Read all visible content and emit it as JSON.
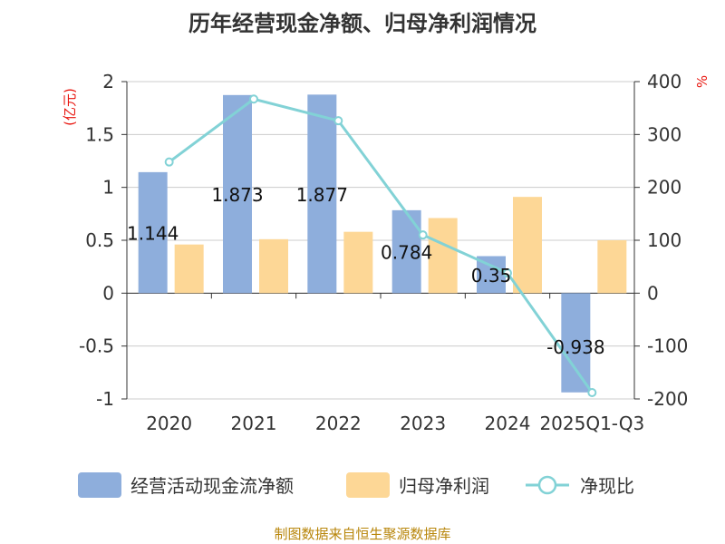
{
  "title": "历年经营现金净额、归母净利润情况",
  "source": "制图数据来自恒生聚源数据库",
  "chart_data": {
    "type": "bar+line",
    "categories": [
      "2020",
      "2021",
      "2022",
      "2023",
      "2024",
      "2025Q1-Q3"
    ],
    "series": [
      {
        "name": "经营活动现金流净额",
        "axis": "left",
        "type": "bar",
        "color": "#8eaedc",
        "values": [
          1.144,
          1.873,
          1.877,
          0.784,
          0.35,
          -0.938
        ],
        "labels": [
          "1.144",
          "1.873",
          "1.877",
          "0.784",
          "0.35",
          "-0.938"
        ]
      },
      {
        "name": "归母净利润",
        "axis": "left",
        "type": "bar",
        "color": "#fdd796",
        "values": [
          0.46,
          0.51,
          0.58,
          0.71,
          0.91,
          0.5
        ]
      },
      {
        "name": "净现比",
        "axis": "right",
        "type": "line",
        "color": "#82d2d6",
        "values": [
          248,
          367,
          326,
          110,
          38,
          -188
        ]
      }
    ],
    "y_left": {
      "unit": "(亿元)",
      "min": -1,
      "max": 2,
      "ticks": [
        "-1",
        "-0.5",
        "0",
        "0.5",
        "1",
        "1.5",
        "2"
      ]
    },
    "y_right": {
      "unit": "%",
      "min": -200,
      "max": 400,
      "ticks": [
        "-200",
        "-100",
        "0",
        "100",
        "200",
        "300",
        "400"
      ]
    },
    "legend_position": "bottom",
    "grid": true
  }
}
